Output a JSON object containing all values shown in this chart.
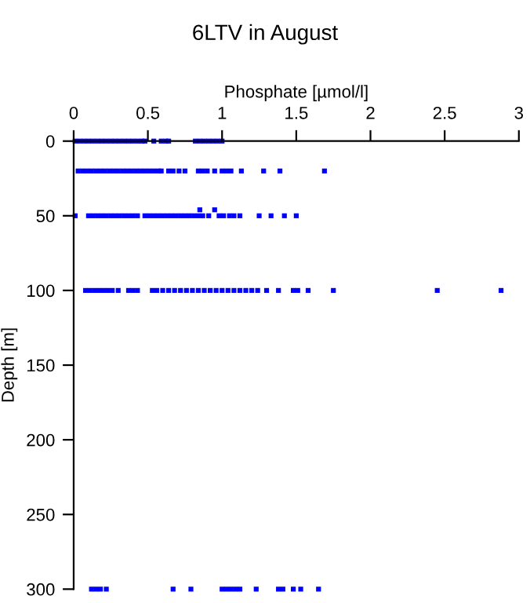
{
  "chart_data": {
    "type": "scatter",
    "title": "6LTV in August",
    "xlabel": "Phosphate [µmol/l]",
    "ylabel": "Depth [m]",
    "xlim": [
      0,
      3
    ],
    "xticks": [
      0,
      0.5,
      1,
      1.5,
      2,
      2.5,
      3
    ],
    "ylim": [
      300,
      0
    ],
    "yticks": [
      0,
      50,
      100,
      150,
      200,
      250,
      300
    ],
    "grid": false,
    "legend": false,
    "marker": "square",
    "series": [
      {
        "color": "#0000ff",
        "x": [
          0.01,
          0.04,
          0.07,
          0.1,
          0.13,
          0.16,
          0.19,
          0.22,
          0.25,
          0.28,
          0.31,
          0.34,
          0.37,
          0.4,
          0.43,
          0.46,
          0.48,
          0.54,
          0.59,
          0.62,
          0.64,
          0.82,
          0.85,
          0.88,
          0.91,
          0.94,
          0.97,
          1.0
        ],
        "values": [
          0,
          0,
          0,
          0,
          0,
          0,
          0,
          0,
          0,
          0,
          0,
          0,
          0,
          0,
          0,
          0,
          0,
          0,
          0,
          0,
          0,
          0,
          0,
          0,
          0,
          0,
          0,
          0
        ]
      },
      {
        "color": "#0000ff",
        "x": [
          0.03,
          0.06,
          0.09,
          0.12,
          0.15,
          0.18,
          0.21,
          0.24,
          0.27,
          0.3,
          0.33,
          0.36,
          0.39,
          0.42,
          0.45,
          0.48,
          0.51,
          0.54,
          0.57,
          0.59,
          0.64,
          0.67,
          0.71,
          0.75,
          0.84,
          0.87,
          0.9,
          0.95,
          1.0,
          1.03,
          1.06,
          1.13,
          1.28,
          1.39,
          1.69
        ],
        "values": [
          20,
          20,
          20,
          20,
          20,
          20,
          20,
          20,
          20,
          20,
          20,
          20,
          20,
          20,
          20,
          20,
          20,
          20,
          20,
          20,
          20,
          20,
          20,
          20,
          20,
          20,
          20,
          20,
          20,
          20,
          20,
          20,
          20,
          20,
          20
        ]
      },
      {
        "color": "#0000ff",
        "x": [
          0.01,
          0.1,
          0.13,
          0.16,
          0.19,
          0.22,
          0.25,
          0.28,
          0.31,
          0.34,
          0.37,
          0.4,
          0.43,
          0.48,
          0.51,
          0.54,
          0.57,
          0.6,
          0.63,
          0.66,
          0.69,
          0.72,
          0.75,
          0.78,
          0.81,
          0.84,
          0.87,
          0.91,
          0.98,
          1.01,
          1.05,
          1.08,
          1.12,
          1.25,
          1.33,
          1.42,
          1.5,
          0.85,
          0.95
        ],
        "values": [
          50,
          50,
          50,
          50,
          50,
          50,
          50,
          50,
          50,
          50,
          50,
          50,
          50,
          50,
          50,
          50,
          50,
          50,
          50,
          50,
          50,
          50,
          50,
          50,
          50,
          50,
          50,
          50,
          50,
          50,
          50,
          50,
          50,
          50,
          50,
          50,
          50,
          46,
          46
        ]
      },
      {
        "color": "#0000ff",
        "x": [
          0.08,
          0.11,
          0.14,
          0.17,
          0.2,
          0.23,
          0.26,
          0.3,
          0.37,
          0.4,
          0.43,
          0.53,
          0.56,
          0.6,
          0.64,
          0.68,
          0.72,
          0.76,
          0.8,
          0.84,
          0.88,
          0.92,
          0.96,
          1.0,
          1.04,
          1.08,
          1.12,
          1.16,
          1.2,
          1.24,
          1.3,
          1.38,
          1.48,
          1.51,
          1.58,
          1.75,
          2.45,
          2.88
        ],
        "values": [
          100,
          100,
          100,
          100,
          100,
          100,
          100,
          100,
          100,
          100,
          100,
          100,
          100,
          100,
          100,
          100,
          100,
          100,
          100,
          100,
          100,
          100,
          100,
          100,
          100,
          100,
          100,
          100,
          100,
          100,
          100,
          100,
          100,
          100,
          100,
          100,
          100,
          100
        ]
      },
      {
        "color": "#0000ff",
        "x": [
          0.12,
          0.15,
          0.18,
          0.22,
          0.67,
          0.79,
          1.0,
          1.03,
          1.06,
          1.09,
          1.12,
          1.23,
          1.38,
          1.41,
          1.48,
          1.53,
          1.65
        ],
        "values": [
          300,
          300,
          300,
          300,
          300,
          300,
          300,
          300,
          300,
          300,
          300,
          300,
          300,
          300,
          300,
          300,
          300
        ]
      }
    ]
  }
}
